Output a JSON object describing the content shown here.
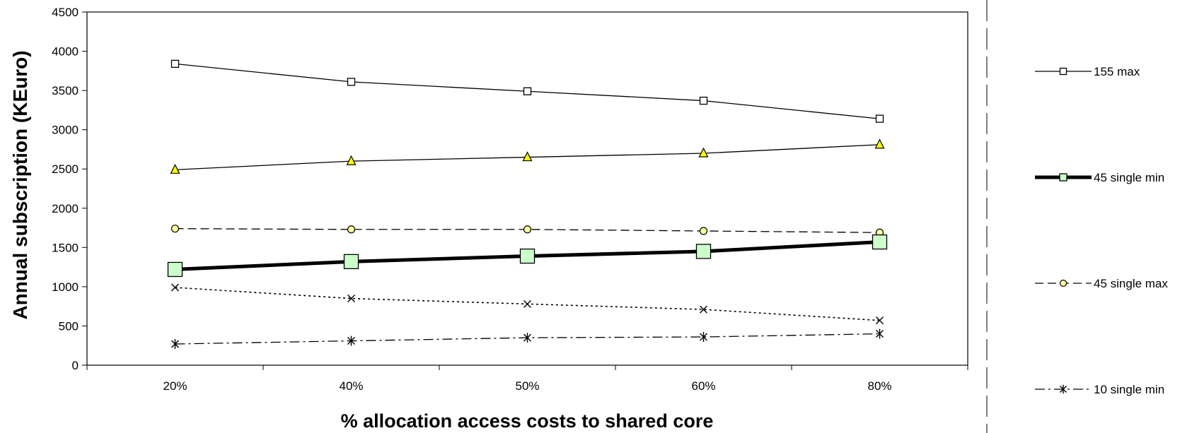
{
  "chart_data": {
    "type": "line",
    "title": "",
    "xlabel": "% allocation access costs  to shared core",
    "ylabel": "Annual subscription (KEuro)",
    "categories": [
      "20%",
      "40%",
      "50%",
      "60%",
      "80%"
    ],
    "ylim": [
      0,
      4500
    ],
    "yticks": [
      "0",
      "500",
      "1000",
      "1500",
      "2000",
      "2500",
      "3000",
      "3500",
      "4000",
      "4500"
    ],
    "grid": false,
    "legend_position": "right",
    "series": [
      {
        "name": "155 max",
        "values": [
          3840,
          3610,
          3490,
          3370,
          3140
        ],
        "marker": "square-open",
        "line": "solid",
        "color": "#000000"
      },
      {
        "name": "",
        "values": [
          2490,
          2600,
          2650,
          2700,
          2810
        ],
        "marker": "triangle",
        "line": "solid",
        "color": "#000000",
        "marker_fill": "#ffff00"
      },
      {
        "name": "45 single max",
        "values": [
          1740,
          1730,
          1730,
          1710,
          1690
        ],
        "marker": "circle",
        "line": "dashed",
        "color": "#000000",
        "marker_fill": "#ffff99"
      },
      {
        "name": "45 single min",
        "values": [
          1220,
          1320,
          1390,
          1450,
          1570
        ],
        "marker": "square-large",
        "line": "thick",
        "color": "#000000",
        "marker_fill": "#ccffcc"
      },
      {
        "name": "",
        "values": [
          990,
          850,
          780,
          710,
          570
        ],
        "marker": "x",
        "line": "dotted",
        "color": "#000000"
      },
      {
        "name": "10 single min",
        "values": [
          270,
          310,
          350,
          360,
          400
        ],
        "marker": "star",
        "line": "dashdot",
        "color": "#000000"
      }
    ]
  }
}
